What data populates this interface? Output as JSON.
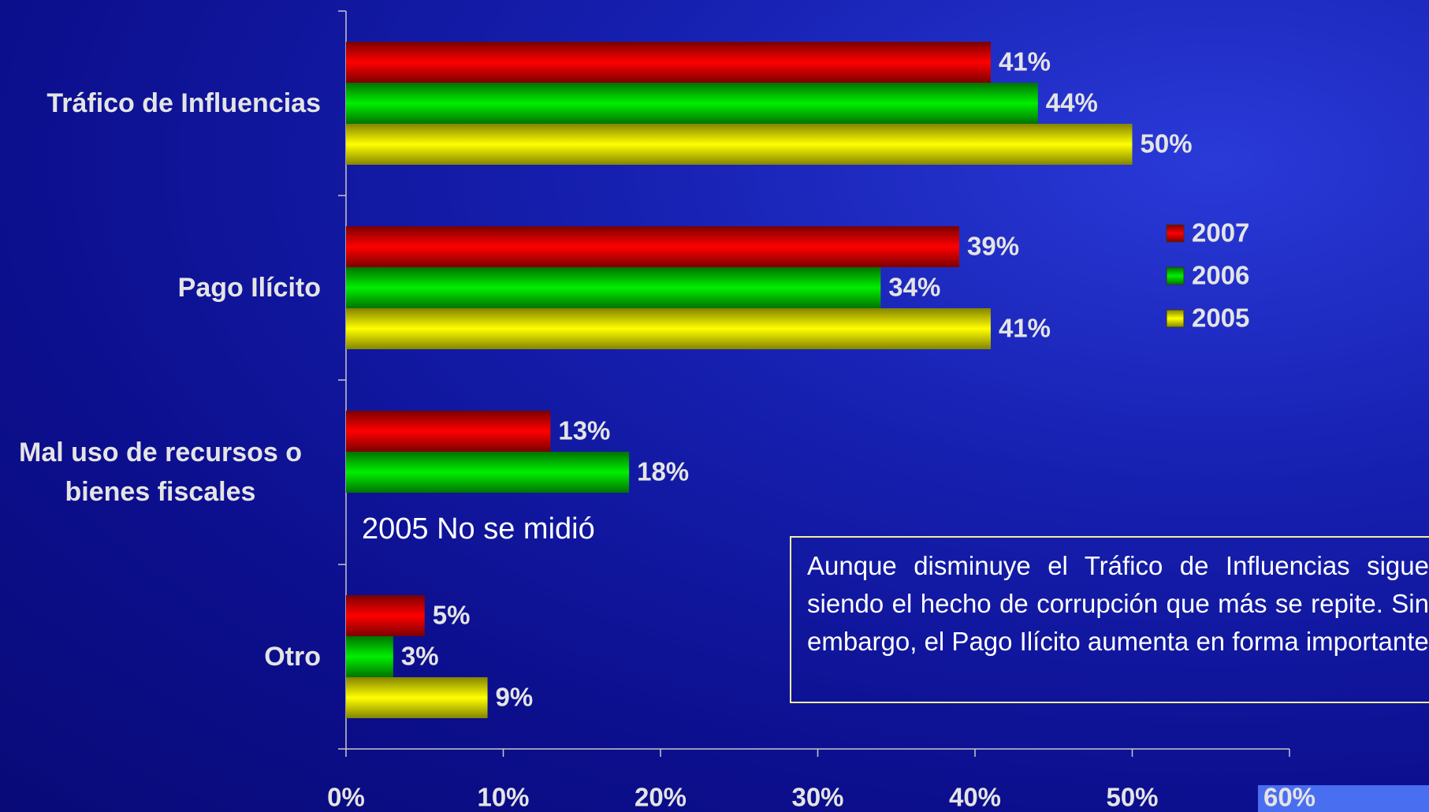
{
  "chart_data": {
    "type": "bar",
    "orientation": "horizontal",
    "categories": [
      "Tráfico de Influencias",
      "Pago Ilícito",
      "Mal uso de recursos o bienes fiscales",
      "Otro"
    ],
    "series": [
      {
        "name": "2007",
        "color": "#e00000",
        "values": [
          41,
          39,
          13,
          5
        ],
        "value_labels": [
          "41%",
          "39%",
          "13%",
          "5%"
        ]
      },
      {
        "name": "2006",
        "color": "#00d000",
        "values": [
          44,
          34,
          18,
          3
        ],
        "value_labels": [
          "44%",
          "34%",
          "18%",
          "3%"
        ]
      },
      {
        "name": "2005",
        "color": "#f0f000",
        "values": [
          50,
          41,
          null,
          9
        ],
        "value_labels": [
          "50%",
          "41%",
          null,
          "9%"
        ]
      }
    ],
    "xlim": [
      0,
      60
    ],
    "xticks": [
      {
        "value": 0,
        "label": "0%"
      },
      {
        "value": 10,
        "label": "10%"
      },
      {
        "value": 20,
        "label": "20%"
      },
      {
        "value": 30,
        "label": "30%"
      },
      {
        "value": 40,
        "label": "40%"
      },
      {
        "value": 50,
        "label": "50%"
      },
      {
        "value": 60,
        "label": "60%"
      }
    ],
    "legend": "right",
    "annotations": [
      "2005 No se midió",
      "Aunque disminuye el Tráfico de Influencias sigue siendo el hecho de corrupción que más se repite. Sin embargo, el Pago Ilícito aumenta en forma importante"
    ]
  }
}
